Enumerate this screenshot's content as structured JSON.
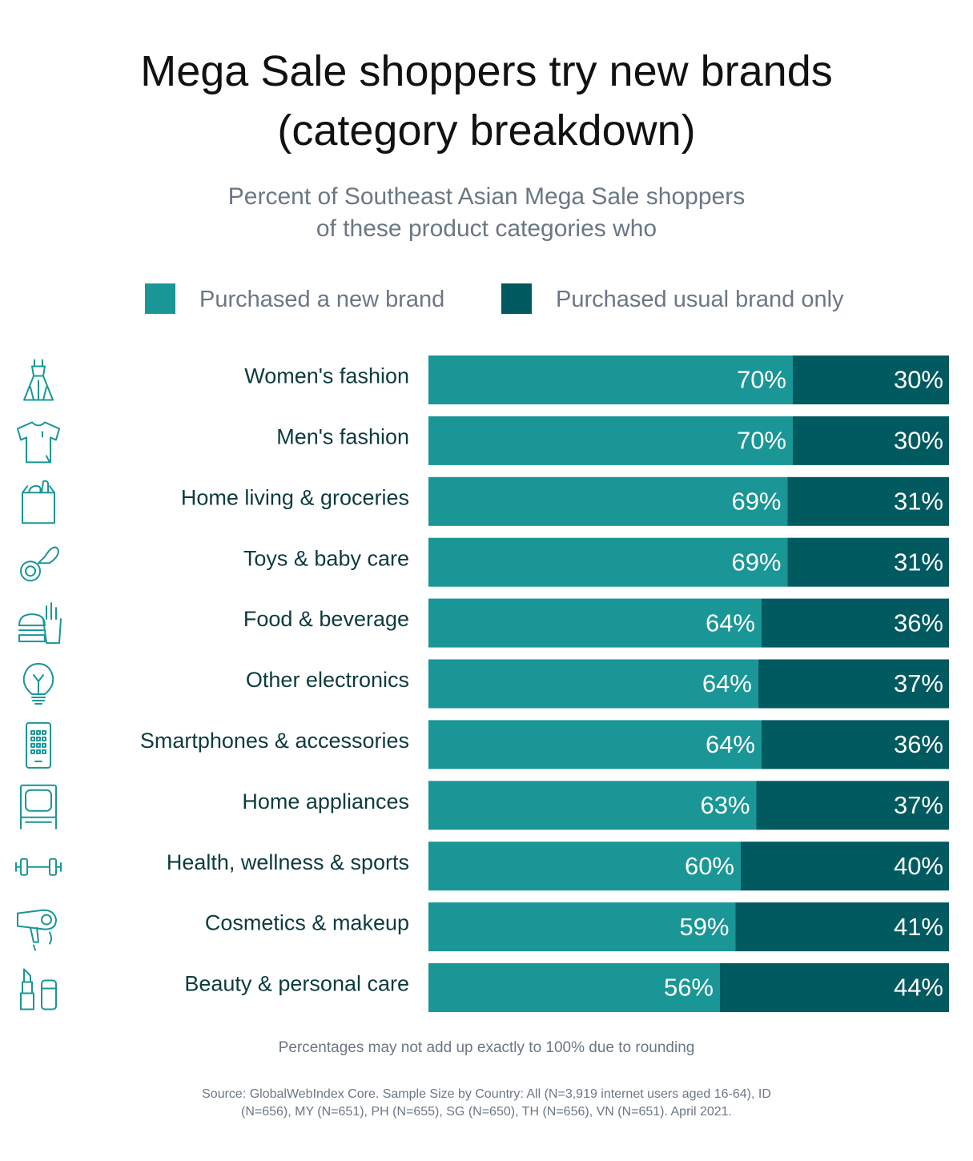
{
  "title_line1": "Mega Sale shoppers try new brands",
  "title_line2": "(category breakdown)",
  "subtitle_line1": "Percent of Southeast Asian Mega Sale shoppers",
  "subtitle_line2": "of these product categories who",
  "colors": {
    "new_brand": "#1a9696",
    "usual_brand": "#005a5f",
    "category_text": "#0d3b3e",
    "icon_stroke": "#1a9696"
  },
  "chart_data": {
    "type": "bar",
    "orientation": "horizontal",
    "stacked": true,
    "categories": [
      "Women's fashion",
      "Men's fashion",
      "Home living & groceries",
      "Toys & baby care",
      "Food & beverage",
      "Other electronics",
      "Smartphones & accessories",
      "Home appliances",
      "Health, wellness & sports",
      "Cosmetics & makeup",
      "Beauty & personal care"
    ],
    "icons": [
      "dress-icon",
      "tshirt-icon",
      "grocery-bag-icon",
      "pacifier-icon",
      "burger-fries-icon",
      "lightbulb-icon",
      "smartphone-icon",
      "tv-icon",
      "dumbbell-icon",
      "hairdryer-icon",
      "lipstick-icon"
    ],
    "series": [
      {
        "name": "Purchased a new brand",
        "values": [
          70,
          70,
          69,
          69,
          64,
          64,
          64,
          63,
          60,
          59,
          56
        ],
        "labels": [
          "70%",
          "70%",
          "69%",
          "69%",
          "64%",
          "64%",
          "64%",
          "63%",
          "60%",
          "59%",
          "56%"
        ]
      },
      {
        "name": "Purchased usual brand only",
        "values": [
          30,
          30,
          31,
          31,
          36,
          37,
          36,
          37,
          40,
          41,
          44
        ],
        "labels": [
          "30%",
          "30%",
          "31%",
          "31%",
          "36%",
          "37%",
          "36%",
          "37%",
          "40%",
          "41%",
          "44%"
        ]
      }
    ],
    "xlim": [
      0,
      100
    ],
    "legend": "top"
  },
  "note": "Percentages may not add up exactly to 100% due to rounding",
  "source_line1": "Source: GlobalWebIndex Core. Sample Size by Country: All (N=3,919 internet users aged 16-64), ID",
  "source_line2": "(N=656), MY (N=651), PH (N=655), SG (N=650), TH (N=656), VN (N=651). April 2021."
}
